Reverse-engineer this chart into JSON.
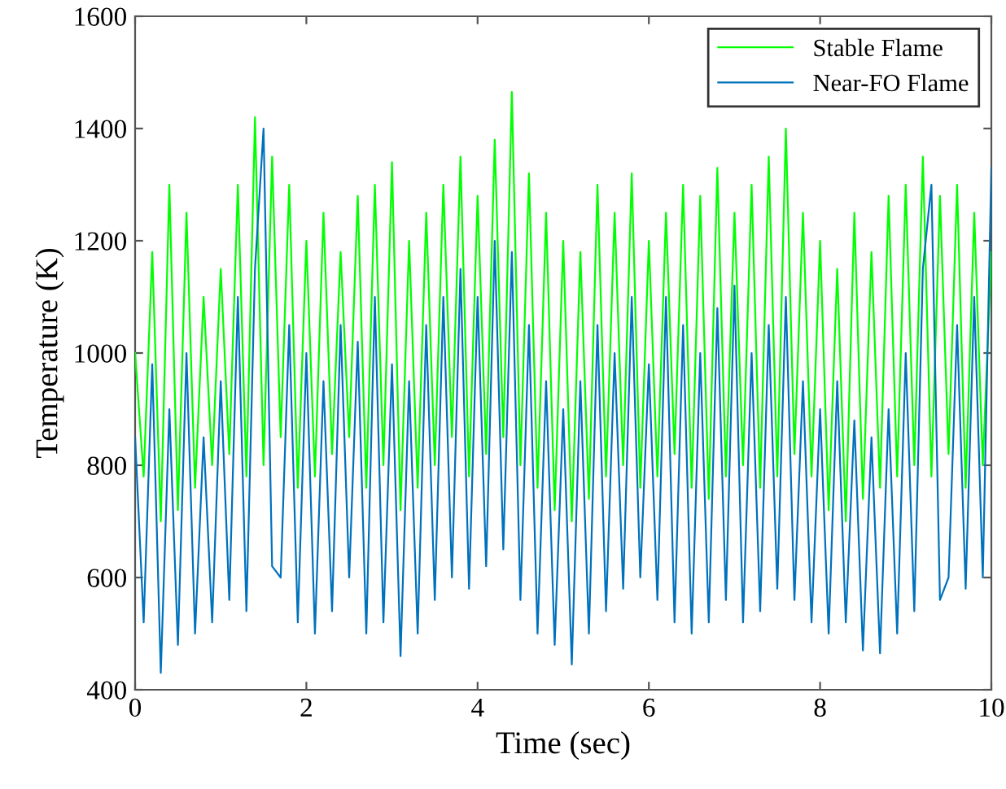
{
  "chart_data": {
    "type": "line",
    "xlabel": "Time (sec)",
    "ylabel": "Temperature (K)",
    "x": [
      0,
      0.1,
      0.2,
      0.3,
      0.4,
      0.5,
      0.6,
      0.7,
      0.8,
      0.9,
      1.0,
      1.1,
      1.2,
      1.3,
      1.4,
      1.5,
      1.6,
      1.7,
      1.8,
      1.9,
      2.0,
      2.1,
      2.2,
      2.3,
      2.4,
      2.5,
      2.6,
      2.7,
      2.8,
      2.9,
      3.0,
      3.1,
      3.2,
      3.3,
      3.4,
      3.5,
      3.6,
      3.7,
      3.8,
      3.9,
      4.0,
      4.1,
      4.2,
      4.3,
      4.4,
      4.5,
      4.6,
      4.7,
      4.8,
      4.9,
      5.0,
      5.1,
      5.2,
      5.3,
      5.4,
      5.5,
      5.6,
      5.7,
      5.8,
      5.9,
      6.0,
      6.1,
      6.2,
      6.3,
      6.4,
      6.5,
      6.6,
      6.7,
      6.8,
      6.9,
      7.0,
      7.1,
      7.2,
      7.3,
      7.4,
      7.5,
      7.6,
      7.7,
      7.8,
      7.9,
      8.0,
      8.1,
      8.2,
      8.3,
      8.4,
      8.5,
      8.6,
      8.7,
      8.8,
      8.9,
      9.0,
      9.1,
      9.2,
      9.3,
      9.4,
      9.5,
      9.6,
      9.7,
      9.8,
      9.9,
      10
    ],
    "series": [
      {
        "name": "Stable Flame",
        "color": "#00ff00",
        "values": [
          1000,
          780,
          1180,
          700,
          1300,
          720,
          1250,
          760,
          1100,
          800,
          1150,
          820,
          1300,
          780,
          1420,
          800,
          1350,
          850,
          1300,
          760,
          1200,
          780,
          1250,
          820,
          1180,
          850,
          1280,
          760,
          1300,
          800,
          1340,
          720,
          1200,
          760,
          1250,
          800,
          1300,
          850,
          1350,
          780,
          1280,
          820,
          1380,
          850,
          1465,
          800,
          1320,
          760,
          1250,
          720,
          1200,
          700,
          1180,
          740,
          1300,
          780,
          1250,
          800,
          1320,
          760,
          1200,
          780,
          1250,
          820,
          1300,
          760,
          1280,
          740,
          1330,
          780,
          1250,
          800,
          1300,
          760,
          1350,
          780,
          1400,
          820,
          1250,
          780,
          1200,
          720,
          1150,
          700,
          1250,
          740,
          1180,
          760,
          1280,
          780,
          1300,
          800,
          1350,
          780,
          1280,
          820,
          1300,
          760,
          1250,
          800,
          1180
        ]
      },
      {
        "name": "Near-FO Flame",
        "color": "#0072bd",
        "values": [
          850,
          520,
          980,
          430,
          900,
          480,
          1000,
          500,
          850,
          520,
          950,
          560,
          1100,
          540,
          1150,
          1400,
          620,
          600,
          1050,
          520,
          1000,
          500,
          950,
          540,
          1050,
          600,
          1020,
          500,
          1100,
          520,
          980,
          460,
          950,
          500,
          1050,
          560,
          1100,
          600,
          1150,
          580,
          1100,
          620,
          1200,
          650,
          1180,
          560,
          1050,
          500,
          950,
          480,
          900,
          445,
          950,
          500,
          1050,
          540,
          1000,
          580,
          1100,
          600,
          980,
          560,
          1100,
          520,
          1050,
          500,
          1000,
          520,
          1080,
          560,
          1120,
          520,
          1000,
          540,
          1050,
          580,
          1100,
          560,
          950,
          520,
          900,
          500,
          950,
          520,
          880,
          470,
          850,
          465,
          900,
          500,
          1000,
          540,
          1150,
          1300,
          560,
          600,
          1050,
          580,
          1100,
          600,
          1330
        ]
      }
    ],
    "xlim": [
      0,
      10
    ],
    "xticks": [
      0,
      2,
      4,
      6,
      8,
      10
    ],
    "ylim": [
      400,
      1600
    ],
    "yticks": [
      400,
      600,
      800,
      1000,
      1200,
      1400,
      1600
    ],
    "legend": "top right"
  }
}
